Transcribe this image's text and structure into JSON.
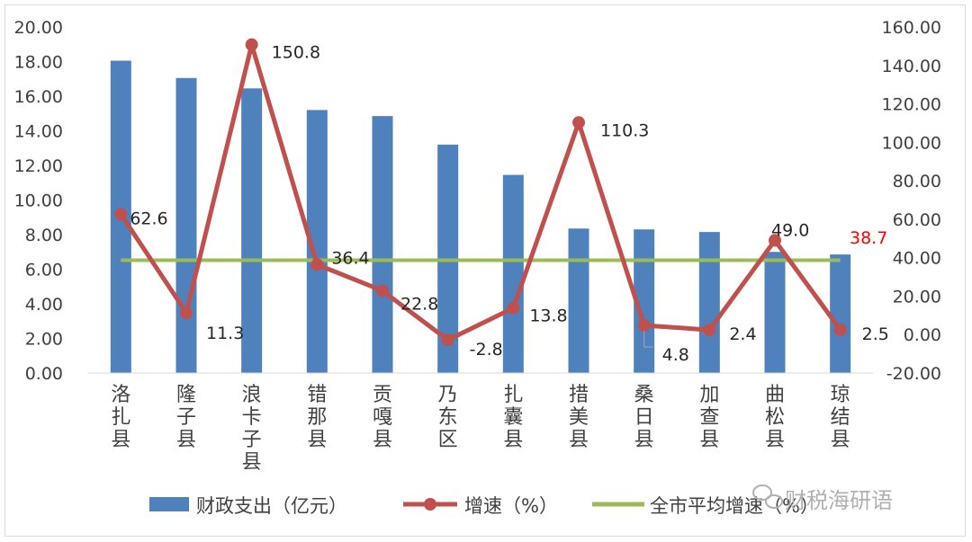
{
  "chart_data": {
    "type": "bar",
    "categories": [
      "洛\n扎\n县",
      "隆\n子\n县",
      "浪\n卡\n子\n县",
      "错\n那\n县",
      "贡\n嘎\n县",
      "乃\n东\n区",
      "扎\n囊\n县",
      "措\n美\n县",
      "桑\n日\n县",
      "加\n查\n县",
      "曲\n松\n县",
      "琼\n结\n县"
    ],
    "series": [
      {
        "name": "财政支出（亿元）",
        "type": "bar",
        "axis": "left",
        "color": "#4f81bd",
        "values": [
          18.05,
          17.05,
          16.45,
          15.2,
          14.85,
          13.2,
          11.45,
          8.35,
          8.3,
          8.15,
          7.0,
          6.85
        ]
      },
      {
        "name": "增速（%）",
        "type": "line",
        "axis": "right",
        "color": "#c0504d",
        "values": [
          62.6,
          11.3,
          150.8,
          36.4,
          22.8,
          -2.8,
          13.8,
          110.3,
          4.8,
          2.4,
          49.0,
          2.5
        ],
        "labels": [
          "62.6",
          "11.3",
          "150.8",
          "36.4",
          "22.8",
          "-2.8",
          "13.8",
          "110.3",
          "4.8",
          "2.4",
          "49.0",
          "2.5"
        ]
      },
      {
        "name": "全市平均增速（%）",
        "type": "line",
        "axis": "right",
        "color": "#9bbb59",
        "value": 38.7,
        "label": "38.7",
        "label_color": "#ff0000"
      }
    ],
    "left_axis": {
      "ylim": [
        0,
        20
      ],
      "ticks": [
        "0.00",
        "2.00",
        "4.00",
        "6.00",
        "8.00",
        "10.00",
        "12.00",
        "14.00",
        "16.00",
        "18.00",
        "20.00"
      ]
    },
    "right_axis": {
      "ylim": [
        -20,
        160
      ],
      "ticks": [
        "-20.00",
        "0.00",
        "20.00",
        "40.00",
        "60.00",
        "80.00",
        "100.00",
        "120.00",
        "140.00",
        "160.00"
      ]
    },
    "grid": false,
    "legend_position": "bottom"
  },
  "watermark": "财税海研语"
}
